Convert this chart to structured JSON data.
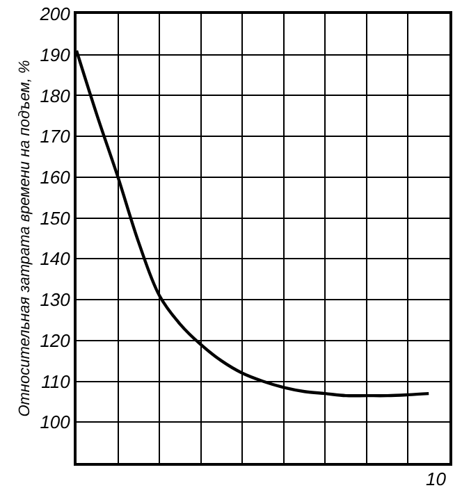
{
  "chart_data": {
    "type": "line",
    "ylabel": "Относительная затрата времени на подъем, %",
    "categories": [
      null,
      null,
      null,
      null,
      null,
      null,
      null,
      null,
      null,
      null,
      null,
      null,
      null,
      null,
      null,
      null,
      null,
      null
    ],
    "series": [
      {
        "color": "#000000",
        "values": [
          191,
          175,
          160,
          144,
          131,
          124,
          119,
          115,
          112,
          110,
          108.5,
          107.5,
          107,
          106.5,
          106.5,
          106.5,
          106.7,
          107
        ]
      }
    ],
    "annotations": [
      "10"
    ],
    "ylim": [
      90,
      200
    ],
    "yticks": [
      100,
      110,
      120,
      130,
      140,
      150,
      160,
      170,
      180,
      190,
      200
    ],
    "grid": true,
    "marker": "none",
    "line_style": "solid"
  }
}
